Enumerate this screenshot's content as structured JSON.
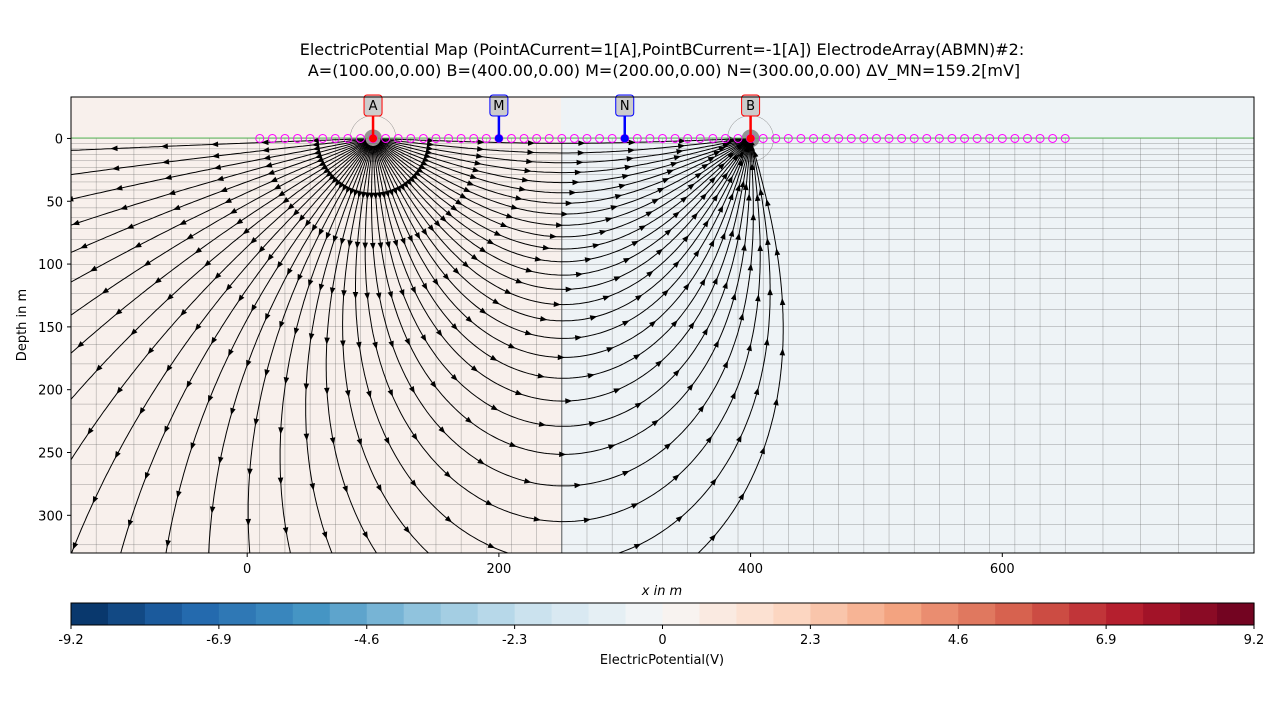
{
  "chart_data": {
    "type": "heatmap",
    "title_line1": "ElectricPotential Map (PointACurrent=1[A],PointBCurrent=-1[A]) ElectrodeArray(ABMN)#2:",
    "title_line2": "A=(100.00,0.00) B=(400.00,0.00) M=(200.00,0.00) N=(300.00,0.00) ΔV_MN=159.2[mV]",
    "xlabel": "x in m",
    "ylabel": "Depth in m",
    "xlim": [
      -140,
      800
    ],
    "ylim": [
      330,
      -33
    ],
    "xticks": [
      "0",
      "200",
      "400",
      "600"
    ],
    "xtick_values": [
      0,
      200,
      400,
      600
    ],
    "yticks": [
      "0",
      "50",
      "100",
      "150",
      "200",
      "250",
      "300"
    ],
    "ytick_values": [
      0,
      50,
      100,
      150,
      200,
      250,
      300
    ],
    "current_electrodes": [
      {
        "label": "A",
        "x": 100,
        "current": 1
      },
      {
        "label": "B",
        "x": 400,
        "current": -1
      }
    ],
    "potential_electrodes": [
      {
        "label": "M",
        "x": 200
      },
      {
        "label": "N",
        "x": 300
      }
    ],
    "electrode_positions": {
      "start": 10,
      "end": 650,
      "spacing": 10
    },
    "colorbar": {
      "label": "ElectricPotential(V)",
      "ticks": [
        "-9.2",
        "-6.9",
        "-4.6",
        "-2.3",
        "0",
        "2.3",
        "4.6",
        "6.9",
        "9.2"
      ],
      "tick_values": [
        -9.2,
        -6.9,
        -4.6,
        -2.3,
        0,
        2.3,
        4.6,
        6.9,
        9.2
      ],
      "range": [
        -9.2,
        9.2
      ],
      "bins": 32,
      "colormap": "RdBu_r"
    },
    "colors": {
      "current_electrode": "#ff0000",
      "potential_electrode": "#0000ff",
      "electrode_ring": "#ff00ff",
      "label_fill": "#cccccc",
      "streamline": "#000000",
      "mesh_line": "#555555",
      "surface_line": "#5fbf5f"
    }
  }
}
